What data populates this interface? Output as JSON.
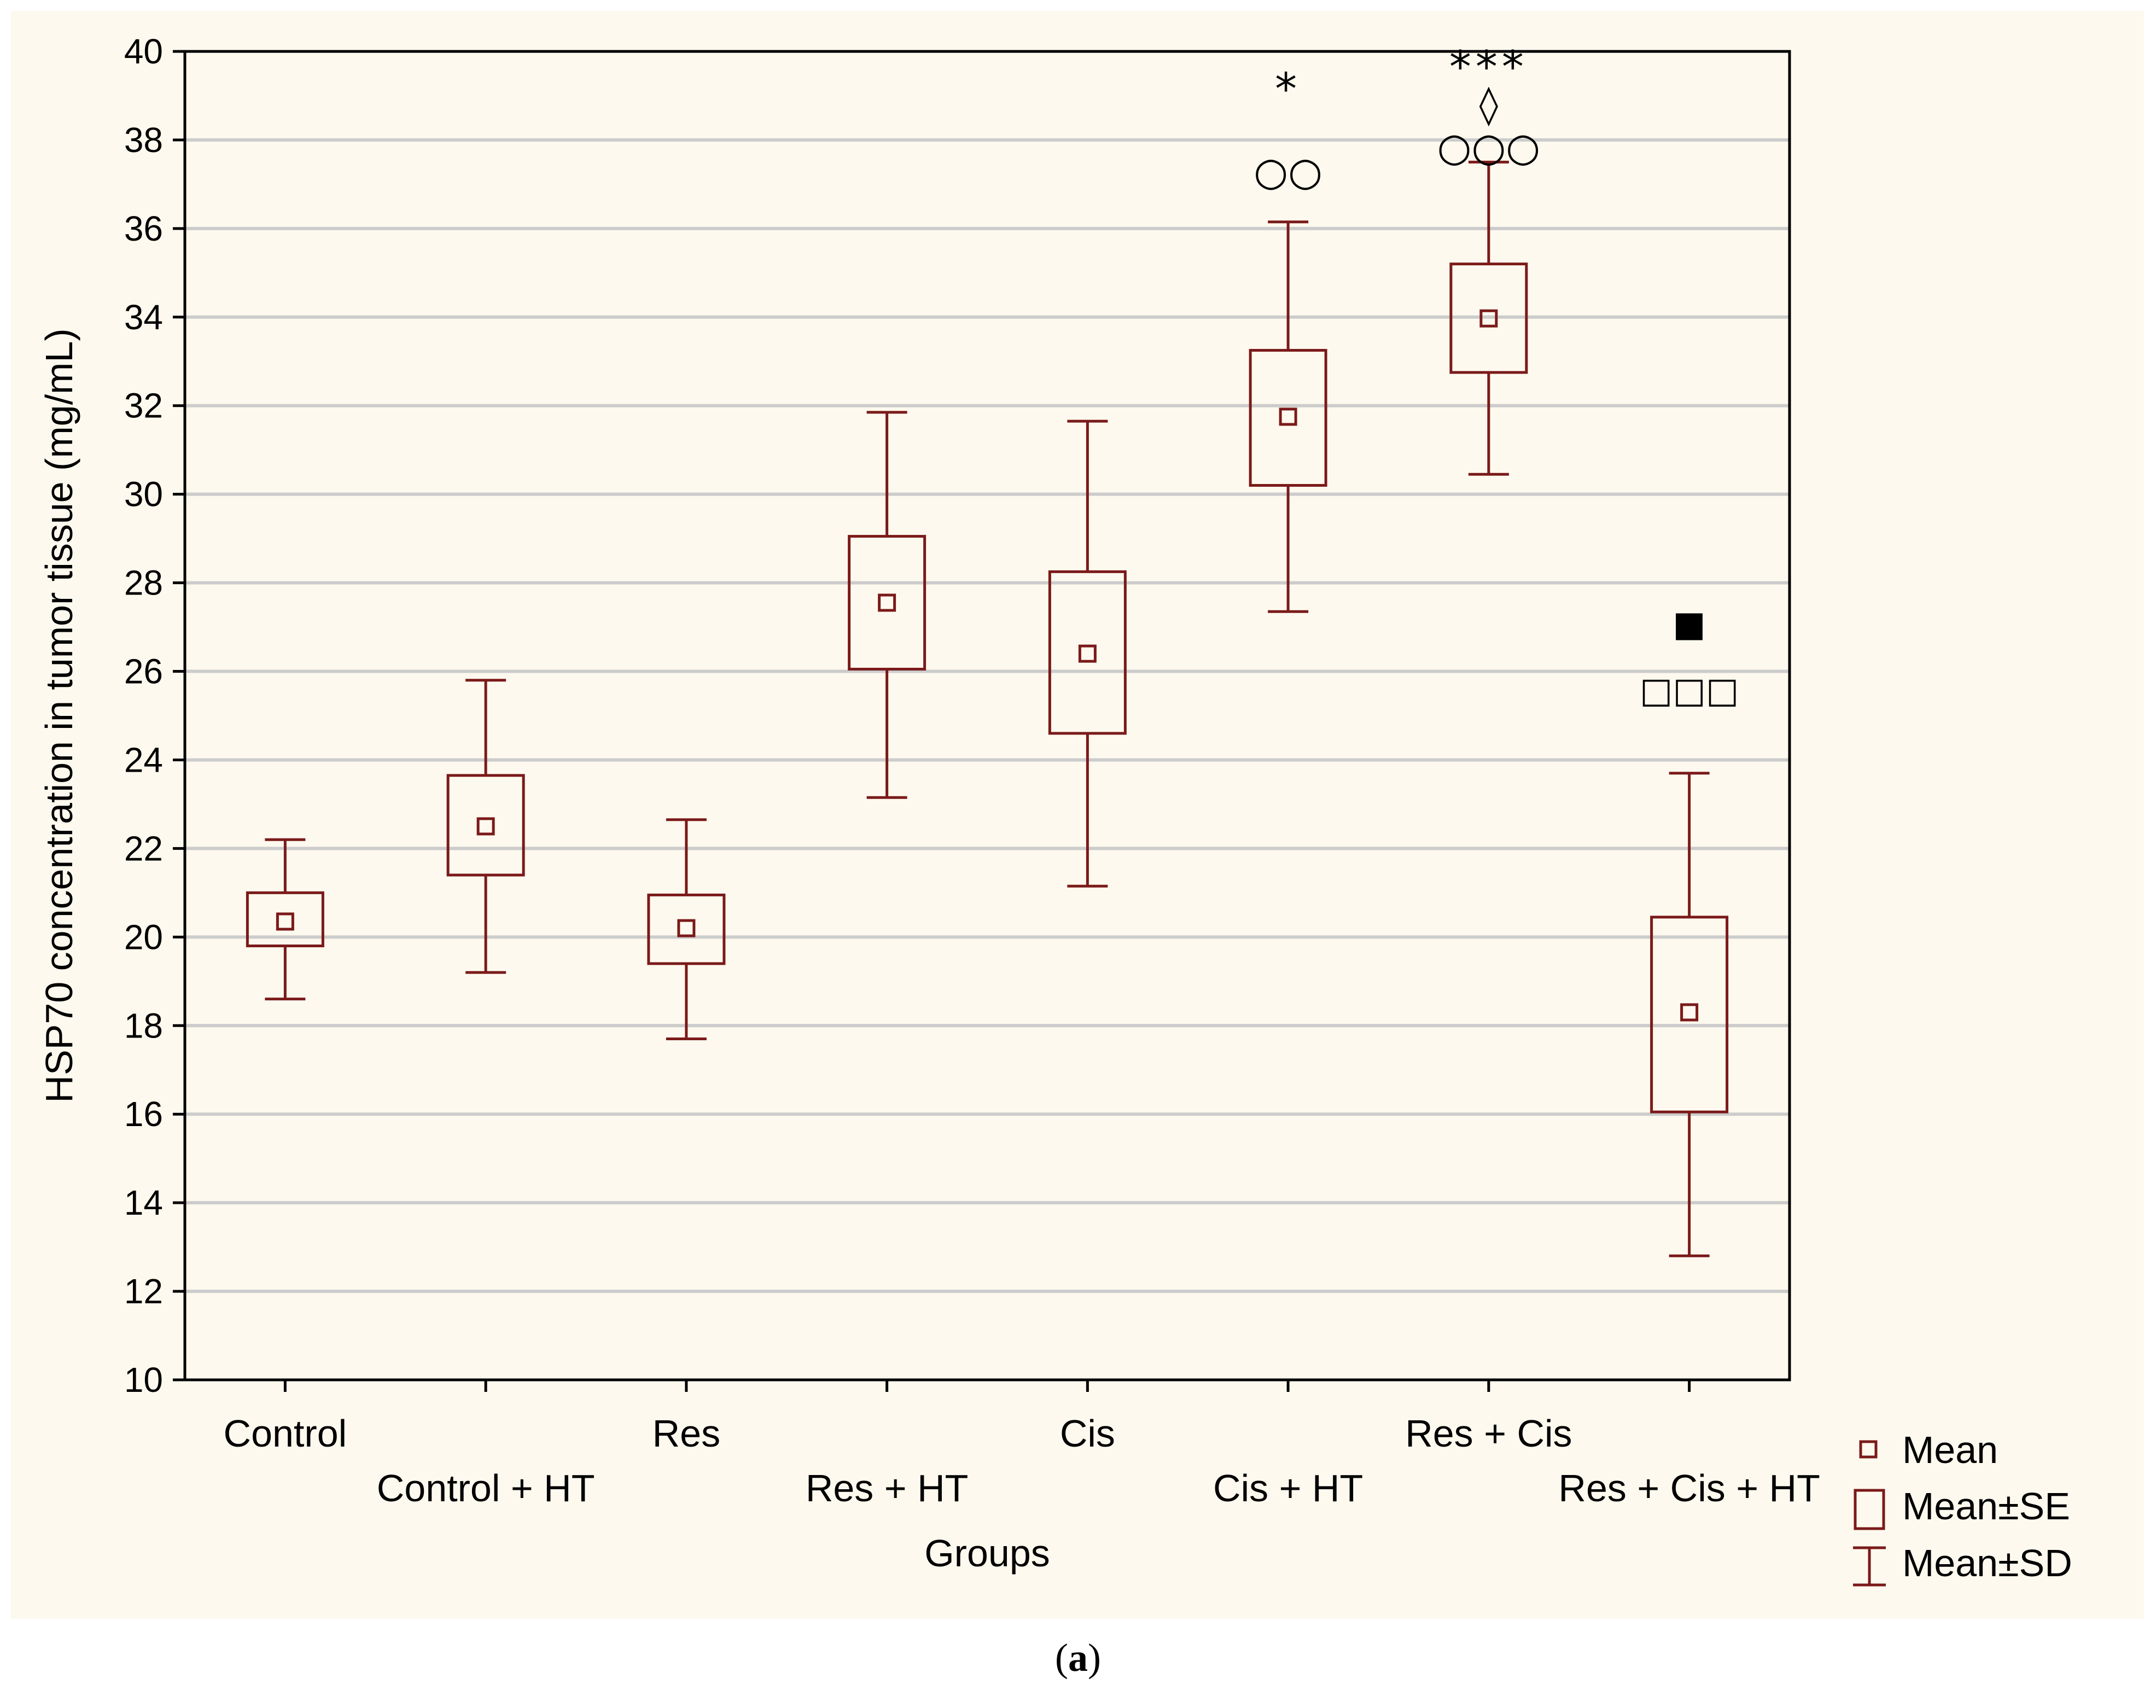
{
  "chart_data": {
    "type": "boxplot",
    "title": "",
    "xlabel": "Groups",
    "ylabel": "HSP70 concentration in tumor tissue (mg/mL)",
    "ylim": [
      10,
      40
    ],
    "yticks": [
      10,
      12,
      14,
      16,
      18,
      20,
      22,
      24,
      26,
      28,
      30,
      32,
      34,
      36,
      38,
      40
    ],
    "grid": true,
    "categories": [
      "Control",
      "Control + HT",
      "Res",
      "Res + HT",
      "Cis",
      "Cis + HT",
      "Res + Cis",
      "Res + Cis + HT"
    ],
    "series": [
      {
        "name": "Mean",
        "values": [
          20.35,
          22.5,
          20.2,
          27.55,
          26.4,
          31.75,
          33.97,
          18.3
        ]
      },
      {
        "name": "Mean±SE",
        "lower": [
          19.8,
          21.4,
          19.4,
          26.05,
          24.6,
          30.2,
          32.75,
          16.05
        ],
        "upper": [
          21.0,
          23.65,
          20.95,
          29.05,
          28.25,
          33.25,
          35.2,
          20.45
        ]
      },
      {
        "name": "Mean±SD",
        "lower": [
          18.6,
          19.2,
          17.7,
          23.15,
          21.15,
          27.35,
          30.45,
          12.8
        ],
        "upper": [
          22.2,
          25.8,
          22.65,
          31.85,
          31.65,
          36.15,
          37.5,
          23.7
        ]
      }
    ],
    "legend": {
      "position": "bottom-right",
      "entries": [
        "Mean",
        "Mean±SE",
        "Mean±SD"
      ]
    },
    "annotations": [
      {
        "category": "Cis + HT",
        "text": "*",
        "y": 39.3
      },
      {
        "category": "Cis + HT",
        "text": "○○",
        "y": 37.3
      },
      {
        "category": "Res + Cis",
        "text": "***",
        "y": 39.8
      },
      {
        "category": "Res + Cis",
        "text": "◊",
        "y": 38.8
      },
      {
        "category": "Res + Cis",
        "text": "○○○",
        "y": 37.85
      },
      {
        "category": "Res + Cis + HT",
        "text": "■",
        "y": 27.1
      },
      {
        "category": "Res + Cis + HT",
        "text": "□□□",
        "y": 25.6
      }
    ],
    "colors": {
      "series": "#7b1a1a",
      "grid": "#cccccc",
      "axis": "#000000",
      "background": "#fdf9ee"
    }
  },
  "caption": {
    "open": "(",
    "letter": "a",
    "close": ")"
  }
}
